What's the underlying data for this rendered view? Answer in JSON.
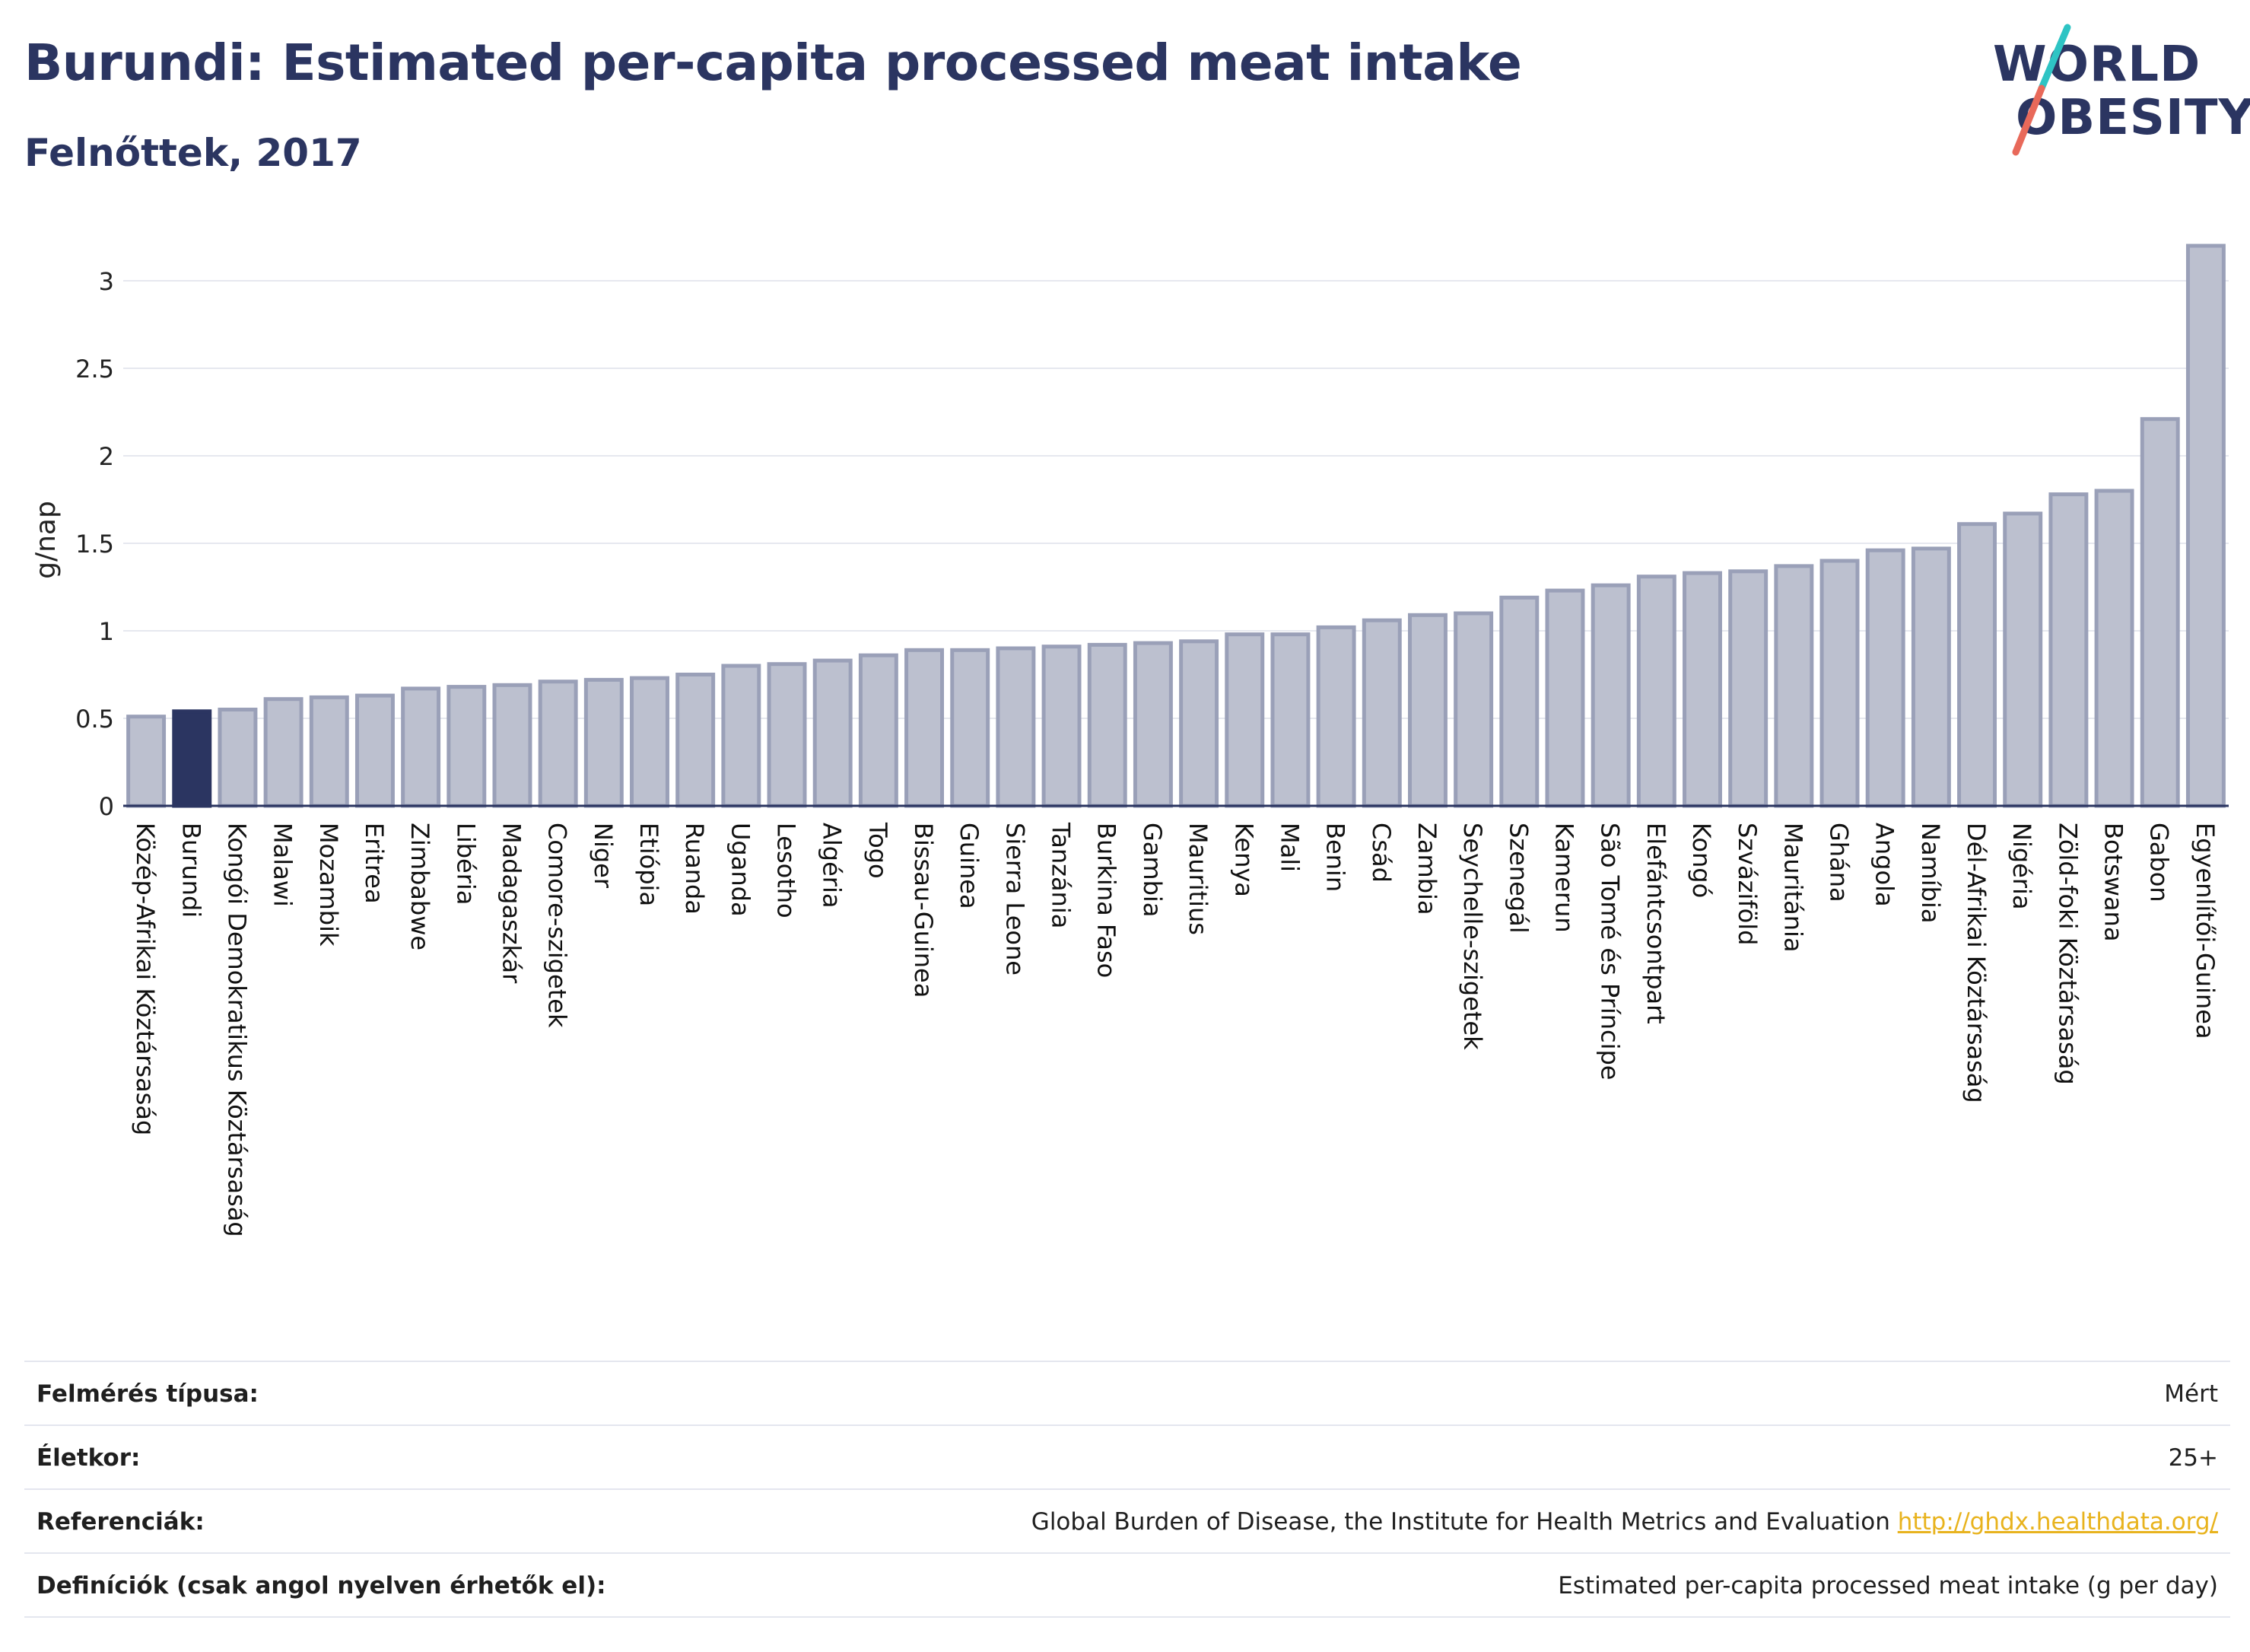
{
  "header": {
    "title": "Burundi: Estimated per-capita processed meat intake",
    "subtitle": "Felnőttek, 2017"
  },
  "logo": {
    "line1": "WORLD",
    "line2": "OBESITY",
    "accent_colors": [
      "#2ec4c4",
      "#e8695a"
    ]
  },
  "colors": {
    "bar": "#bcc0cf",
    "bar_stroke": "#9aa0b8",
    "highlight": "#2b3561",
    "grid": "#e6e8ef",
    "axis": "#2b3561"
  },
  "chart_data": {
    "type": "bar",
    "ylabel": "g/nap",
    "ylim": [
      0,
      3.3
    ],
    "yticks": [
      0,
      0.5,
      1,
      1.5,
      2,
      2.5,
      3
    ],
    "ytick_labels": [
      "0",
      "0.5",
      "1",
      "1.5",
      "2",
      "2.5",
      "3"
    ],
    "grid": true,
    "highlight": "Burundi",
    "categories": [
      "Közép-Afrikai Köztársaság",
      "Burundi",
      "Kongói Demokratikus Köztársaság",
      "Malawi",
      "Mozambik",
      "Eritrea",
      "Zimbabwe",
      "Libéria",
      "Madagaszkár",
      "Comore-szigetek",
      "Niger",
      "Etiópia",
      "Ruanda",
      "Uganda",
      "Lesotho",
      "Algéria",
      "Togo",
      "Bissau-Guinea",
      "Guinea",
      "Sierra Leone",
      "Tanzánia",
      "Burkina Faso",
      "Gambia",
      "Mauritius",
      "Kenya",
      "Mali",
      "Benin",
      "Csád",
      "Zambia",
      "Seychelle-szigetek",
      "Szenegál",
      "Kamerun",
      "São Tomé és Príncipe",
      "Elefántcsontpart",
      "Kongó",
      "Szváziföld",
      "Mauritánia",
      "Ghána",
      "Angola",
      "Namíbia",
      "Dél-Afrikai Köztársaság",
      "Nigéria",
      "Zöld-foki Köztársaság",
      "Botswana",
      "Gabon",
      "Egyenlítői-Guinea"
    ],
    "values": [
      0.51,
      0.54,
      0.55,
      0.61,
      0.62,
      0.63,
      0.67,
      0.68,
      0.69,
      0.71,
      0.72,
      0.73,
      0.75,
      0.8,
      0.81,
      0.83,
      0.86,
      0.89,
      0.89,
      0.9,
      0.91,
      0.92,
      0.93,
      0.94,
      0.98,
      0.98,
      1.02,
      1.06,
      1.09,
      1.1,
      1.19,
      1.23,
      1.26,
      1.31,
      1.33,
      1.34,
      1.37,
      1.4,
      1.46,
      1.47,
      1.61,
      1.67,
      1.78,
      1.8,
      2.21,
      3.2
    ]
  },
  "info": {
    "rows": [
      {
        "label": "Felmérés típusa:",
        "value": "Mért"
      },
      {
        "label": "Életkor:",
        "value": "25+"
      },
      {
        "label": "Referenciák:",
        "value": "Global Burden of Disease, the Institute for Health Metrics and Evaluation",
        "link": "http://ghdx.healthdata.org/"
      },
      {
        "label": "Definíciók (csak angol nyelven érhetők el):",
        "value": "Estimated per-capita processed meat intake (g per day)"
      }
    ]
  }
}
